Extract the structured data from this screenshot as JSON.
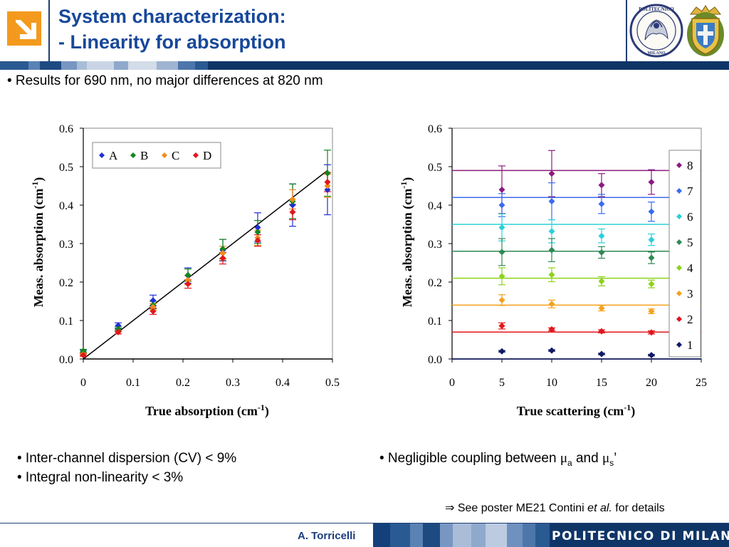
{
  "slide": {
    "title_line1": "System characterization:",
    "title_line2": "- Linearity for absorption",
    "bullet_top": "• Results for 690 nm, no major differences at 820 nm",
    "bullets_left": [
      "• Inter-channel dispersion (CV)  < 9%",
      "• Integral non-linearity < 3%"
    ],
    "bullet_right_prefix": "• Negligible coupling between ",
    "bullet_right_mu": "μ",
    "bullet_right_sub_a": "a",
    "bullet_right_and": " and ",
    "bullet_right_sub_s": "s",
    "bullet_right_suffix": "’",
    "see_arrow": "⇒",
    "see_prefix": " See poster ME21 Contini ",
    "see_etal": "et al.",
    "see_suffix": " for details",
    "footer_author": "A. Torricelli",
    "footer_brand": "POLITECNICO DI MILANO",
    "crest1_text": "POLITECNICO",
    "crest1_sub": "MILANO",
    "colors": {
      "title": "#17489a",
      "accent_orange": "#f39a1e",
      "navy": "#1f3f73"
    },
    "icons": [
      "arrow-logo-icon",
      "politecnico-crest-icon",
      "milano-shield-icon"
    ]
  },
  "chart_data": [
    {
      "type": "scatter",
      "xlabel": "True absorption (cm",
      "xlabel_sup": "-1",
      "xlabel_end": ")",
      "ylabel": "Meas. absorption (cm",
      "ylabel_sup": "-1",
      "ylabel_end": ")",
      "xlim": [
        0,
        0.5
      ],
      "ylim": [
        0,
        0.6
      ],
      "xticks": [
        "0",
        "0.1",
        "0.2",
        "0.3",
        "0.4",
        "0.5"
      ],
      "yticks": [
        "0.0",
        "0.1",
        "0.2",
        "0.3",
        "0.4",
        "0.5",
        "0.6"
      ],
      "legend_position": "top-left",
      "reference_line": {
        "x": [
          0,
          0.49
        ],
        "y": [
          0,
          0.49
        ]
      },
      "series": [
        {
          "name": "A",
          "color": "#1f2fd6",
          "x": [
            0,
            0.07,
            0.14,
            0.21,
            0.28,
            0.35,
            0.42,
            0.49
          ],
          "y": [
            0.02,
            0.087,
            0.152,
            0.217,
            0.283,
            0.342,
            0.4,
            0.44
          ],
          "err": [
            0.004,
            0.007,
            0.014,
            0.02,
            0.028,
            0.038,
            0.055,
            0.065
          ]
        },
        {
          "name": "B",
          "color": "#13861f",
          "x": [
            0,
            0.07,
            0.14,
            0.21,
            0.28,
            0.35,
            0.42,
            0.49
          ],
          "y": [
            0.021,
            0.078,
            0.14,
            0.218,
            0.286,
            0.33,
            0.41,
            0.483
          ],
          "err": [
            0.004,
            0.006,
            0.01,
            0.016,
            0.025,
            0.03,
            0.045,
            0.06
          ]
        },
        {
          "name": "C",
          "color": "#f28c1b",
          "x": [
            0,
            0.07,
            0.14,
            0.21,
            0.28,
            0.35,
            0.42,
            0.49
          ],
          "y": [
            0.012,
            0.07,
            0.135,
            0.205,
            0.275,
            0.315,
            0.415,
            0.45
          ],
          "err": [
            0.003,
            0.005,
            0.009,
            0.012,
            0.018,
            0.02,
            0.025,
            0.03
          ]
        },
        {
          "name": "D",
          "color": "#e0171c",
          "x": [
            0,
            0.07,
            0.14,
            0.21,
            0.28,
            0.35,
            0.42,
            0.49
          ],
          "y": [
            0.01,
            0.07,
            0.124,
            0.195,
            0.262,
            0.308,
            0.382,
            0.46
          ],
          "err": [
            0.003,
            0.005,
            0.008,
            0.011,
            0.015,
            0.015,
            0.02,
            0.025
          ]
        }
      ]
    },
    {
      "type": "scatter",
      "xlabel": "True scattering (cm",
      "xlabel_sup": "-1",
      "xlabel_end": ")",
      "ylabel": "Meas. absorption (cm",
      "ylabel_sup": "-1",
      "ylabel_end": ")",
      "xlim": [
        0,
        25
      ],
      "ylim": [
        0,
        0.6
      ],
      "xticks": [
        "0",
        "5",
        "10",
        "15",
        "20",
        "25"
      ],
      "yticks": [
        "0.0",
        "0.1",
        "0.2",
        "0.3",
        "0.4",
        "0.5",
        "0.6"
      ],
      "legend_position": "right",
      "series": [
        {
          "name": "8",
          "color": "#8b1a7e",
          "level": 0.49,
          "x": [
            5,
            10,
            15,
            20
          ],
          "y": [
            0.44,
            0.482,
            0.452,
            0.46
          ],
          "err": [
            0.062,
            0.06,
            0.03,
            0.032
          ]
        },
        {
          "name": "7",
          "color": "#3a6cf0",
          "level": 0.42,
          "x": [
            5,
            10,
            15,
            20
          ],
          "y": [
            0.4,
            0.41,
            0.403,
            0.383
          ],
          "err": [
            0.03,
            0.048,
            0.025,
            0.025
          ]
        },
        {
          "name": "6",
          "color": "#2ad0d8",
          "level": 0.35,
          "x": [
            5,
            10,
            15,
            20
          ],
          "y": [
            0.342,
            0.332,
            0.32,
            0.31
          ],
          "err": [
            0.035,
            0.03,
            0.018,
            0.015
          ]
        },
        {
          "name": "5",
          "color": "#2f8a55",
          "level": 0.28,
          "x": [
            5,
            10,
            15,
            20
          ],
          "y": [
            0.278,
            0.283,
            0.277,
            0.263
          ],
          "err": [
            0.035,
            0.03,
            0.015,
            0.015
          ]
        },
        {
          "name": "4",
          "color": "#8cd21c",
          "level": 0.21,
          "x": [
            5,
            10,
            15,
            20
          ],
          "y": [
            0.215,
            0.219,
            0.202,
            0.195
          ],
          "err": [
            0.022,
            0.018,
            0.012,
            0.01
          ]
        },
        {
          "name": "3",
          "color": "#f3a21e",
          "level": 0.14,
          "x": [
            5,
            10,
            15,
            20
          ],
          "y": [
            0.153,
            0.143,
            0.132,
            0.124
          ],
          "err": [
            0.014,
            0.01,
            0.007,
            0.006
          ]
        },
        {
          "name": "2",
          "color": "#e0171c",
          "level": 0.07,
          "x": [
            5,
            10,
            15,
            20
          ],
          "y": [
            0.086,
            0.077,
            0.072,
            0.069
          ],
          "err": [
            0.008,
            0.004,
            0.004,
            0.004
          ]
        },
        {
          "name": "1",
          "color": "#101a66",
          "level": 0.0,
          "x": [
            5,
            10,
            15,
            20
          ],
          "y": [
            0.02,
            0.022,
            0.013,
            0.01
          ],
          "err": [
            0.002,
            0.002,
            0.002,
            0.002
          ]
        }
      ]
    }
  ]
}
